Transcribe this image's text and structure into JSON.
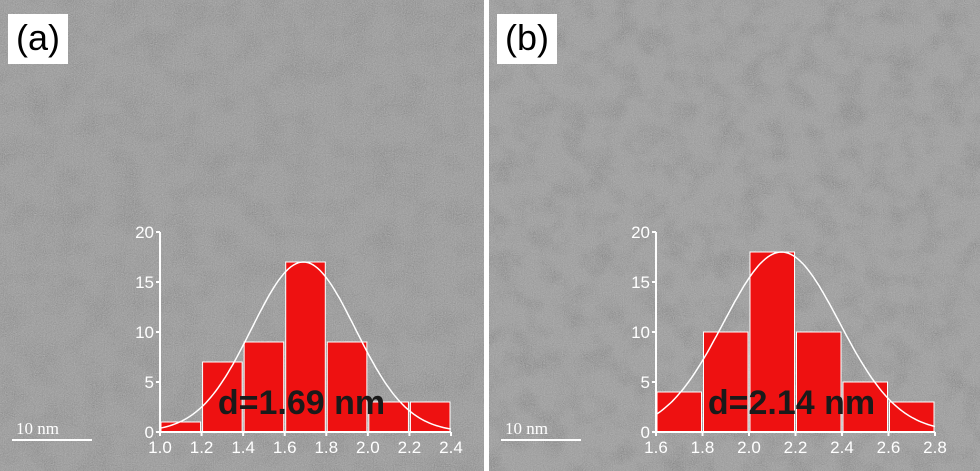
{
  "panels": [
    {
      "label": "(a)",
      "scale_bar": "10 nm",
      "annotation": "d=1.69 nm"
    },
    {
      "label": "(b)",
      "scale_bar": "10 nm",
      "annotation": "d=2.14 nm"
    }
  ],
  "chart_data": [
    {
      "type": "bar",
      "title": "",
      "xlabel": "",
      "ylabel": "",
      "x_ticks": [
        "1.0",
        "1.2",
        "1.4",
        "1.6",
        "1.8",
        "2.0",
        "2.2",
        "2.4"
      ],
      "y_ticks": [
        "0",
        "5",
        "10",
        "15",
        "20"
      ],
      "xlim": [
        1.0,
        2.4
      ],
      "ylim": [
        0,
        20
      ],
      "bin_width": 0.2,
      "bins": [
        1.1,
        1.3,
        1.5,
        1.7,
        1.9,
        2.1,
        2.3
      ],
      "values": [
        1,
        7,
        9,
        17,
        9,
        3,
        3
      ],
      "fit": {
        "type": "gaussian",
        "mean": 1.69,
        "sigma": 0.25,
        "peak": 17
      },
      "bar_color": "#ee1111",
      "fit_color": "#ffffff"
    },
    {
      "type": "bar",
      "title": "",
      "xlabel": "",
      "ylabel": "",
      "x_ticks": [
        "1.6",
        "1.8",
        "2.0",
        "2.2",
        "2.4",
        "2.6",
        "2.8"
      ],
      "y_ticks": [
        "0",
        "5",
        "10",
        "15",
        "20"
      ],
      "xlim": [
        1.6,
        2.8
      ],
      "ylim": [
        0,
        20
      ],
      "bin_width": 0.2,
      "bins": [
        1.7,
        1.9,
        2.1,
        2.3,
        2.5,
        2.7
      ],
      "values": [
        4,
        10,
        18,
        10,
        5,
        3
      ],
      "fit": {
        "type": "gaussian",
        "mean": 2.14,
        "sigma": 0.25,
        "peak": 18
      },
      "bar_color": "#ee1111",
      "fit_color": "#ffffff"
    }
  ]
}
